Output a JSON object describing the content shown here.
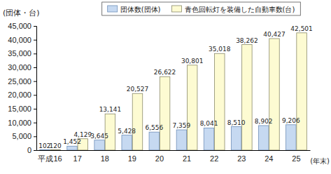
{
  "chart_data": {
    "type": "bar",
    "categories": [
      "平成16",
      "17",
      "18",
      "19",
      "20",
      "21",
      "22",
      "23",
      "24",
      "25"
    ],
    "x_label": "(年末)",
    "y_label": "(団体・台)",
    "series": [
      {
        "name": "団体数(団体)",
        "color": "#c6d9f1",
        "values": [
          102,
          1452,
          3645,
          5428,
          6556,
          7359,
          8041,
          8510,
          8902,
          9206
        ],
        "value_labels": [
          "102",
          "1,452",
          "3,645",
          "5,428",
          "6,556",
          "7,359",
          "8,041",
          "8,510",
          "8,902",
          "9,206"
        ]
      },
      {
        "name": "青色回転灯を装備した自動車数(台)",
        "color": "#fdfbd2",
        "values": [
          120,
          4129,
          13141,
          20527,
          26622,
          30801,
          35018,
          38262,
          40427,
          42501
        ],
        "value_labels": [
          "120",
          "4,129",
          "13,141",
          "20,527",
          "26,622",
          "30,801",
          "35,018",
          "38,262",
          "40,427",
          "42,501"
        ]
      }
    ],
    "ylim": [
      0,
      45000
    ],
    "yticks": [
      0,
      {
        "value": 5000,
        "label": "5,000"
      },
      {
        "value": 10000,
        "label": "10,000"
      },
      {
        "value": 15000,
        "label": "15,000"
      },
      {
        "value": 20000,
        "label": "20,000"
      },
      {
        "value": 25000,
        "label": "25,000"
      },
      {
        "value": 30000,
        "label": "30,000"
      },
      {
        "value": 35000,
        "label": "35,000"
      },
      {
        "value": 40000,
        "label": "40,000"
      },
      {
        "value": 45000,
        "label": "45,000"
      }
    ],
    "grid": false,
    "legend": "top",
    "data_labels": true
  }
}
